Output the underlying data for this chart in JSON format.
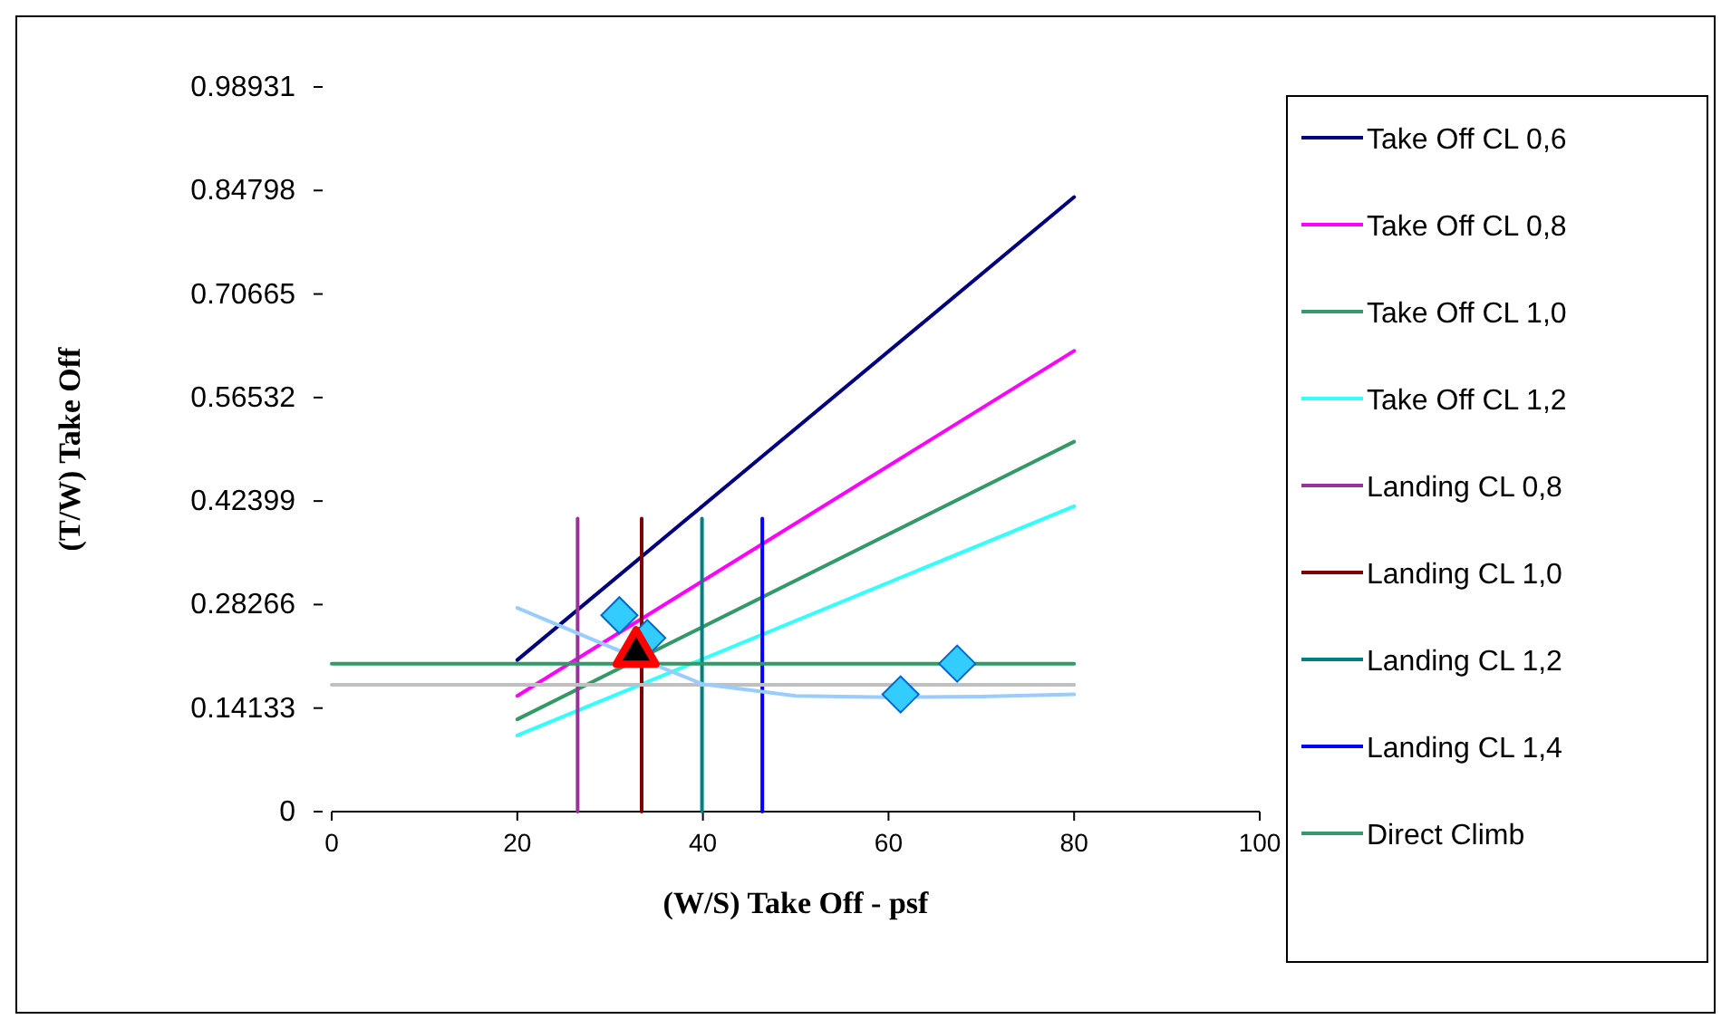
{
  "chart_data": {
    "type": "line",
    "xlabel": "(W/S) Take Off - psf",
    "ylabel": "(T/W) Take Off",
    "xlim": [
      0,
      100
    ],
    "xticks": [
      0,
      20,
      40,
      60,
      80,
      100
    ],
    "ylim": [
      0,
      0.98931
    ],
    "yticks": [
      0,
      0.14133,
      0.28266,
      0.42399,
      0.56532,
      0.70665,
      0.84798,
      0.98931
    ],
    "grid": false,
    "legend": "right",
    "marker": "none",
    "line_style": "solid",
    "series": [
      {
        "name": "Take Off CL 0,6",
        "color": "#000080",
        "x": [
          20,
          80
        ],
        "values": [
          0.207,
          0.839
        ]
      },
      {
        "name": "Take Off CL 0,8",
        "color": "#ff00ff",
        "x": [
          20,
          80
        ],
        "values": [
          0.158,
          0.629
        ]
      },
      {
        "name": "Take Off CL 1,0",
        "color": "#339966",
        "x": [
          20,
          80
        ],
        "values": [
          0.126,
          0.505
        ]
      },
      {
        "name": "Take Off CL 1,2",
        "color": "#33ffff",
        "x": [
          20,
          80
        ],
        "values": [
          0.104,
          0.417
        ]
      },
      {
        "name": "Landing CL 0,8",
        "color": "#993399",
        "x": [
          26.5,
          26.5
        ],
        "values": [
          0,
          0.4
        ]
      },
      {
        "name": "Landing CL 1,0",
        "color": "#800000",
        "x": [
          33.4,
          33.4
        ],
        "values": [
          0,
          0.4
        ]
      },
      {
        "name": "Landing CL 1,2",
        "color": "#008080",
        "x": [
          39.9,
          39.9
        ],
        "values": [
          0,
          0.4
        ]
      },
      {
        "name": "Landing CL 1,4",
        "color": "#0000ff",
        "x": [
          46.4,
          46.4
        ],
        "values": [
          0,
          0.4
        ]
      },
      {
        "name": "Direct Climb",
        "color": "#339966",
        "x": [
          0,
          80
        ],
        "values": [
          0.202,
          0.202
        ]
      },
      {
        "color": "#c0c0c0",
        "x": [
          0,
          80
        ],
        "values": [
          0.173,
          0.173
        ]
      },
      {
        "color": "#99ccff",
        "x": [
          20,
          30,
          40,
          45,
          50,
          60,
          70,
          80
        ],
        "values": [
          0.278,
          0.225,
          0.174,
          0.166,
          0.158,
          0.156,
          0.157,
          0.16
        ]
      },
      {
        "type": "scatter",
        "marker": "diamond",
        "color": "#33ccff",
        "x": [
          31,
          34,
          61.3,
          67.4
        ],
        "values": [
          0.268,
          0.237,
          0.16,
          0.202
        ]
      },
      {
        "type": "scatter",
        "marker": "triangle",
        "color": "#ff0000",
        "x": [
          32.8
        ],
        "values": [
          0.221
        ]
      }
    ]
  }
}
